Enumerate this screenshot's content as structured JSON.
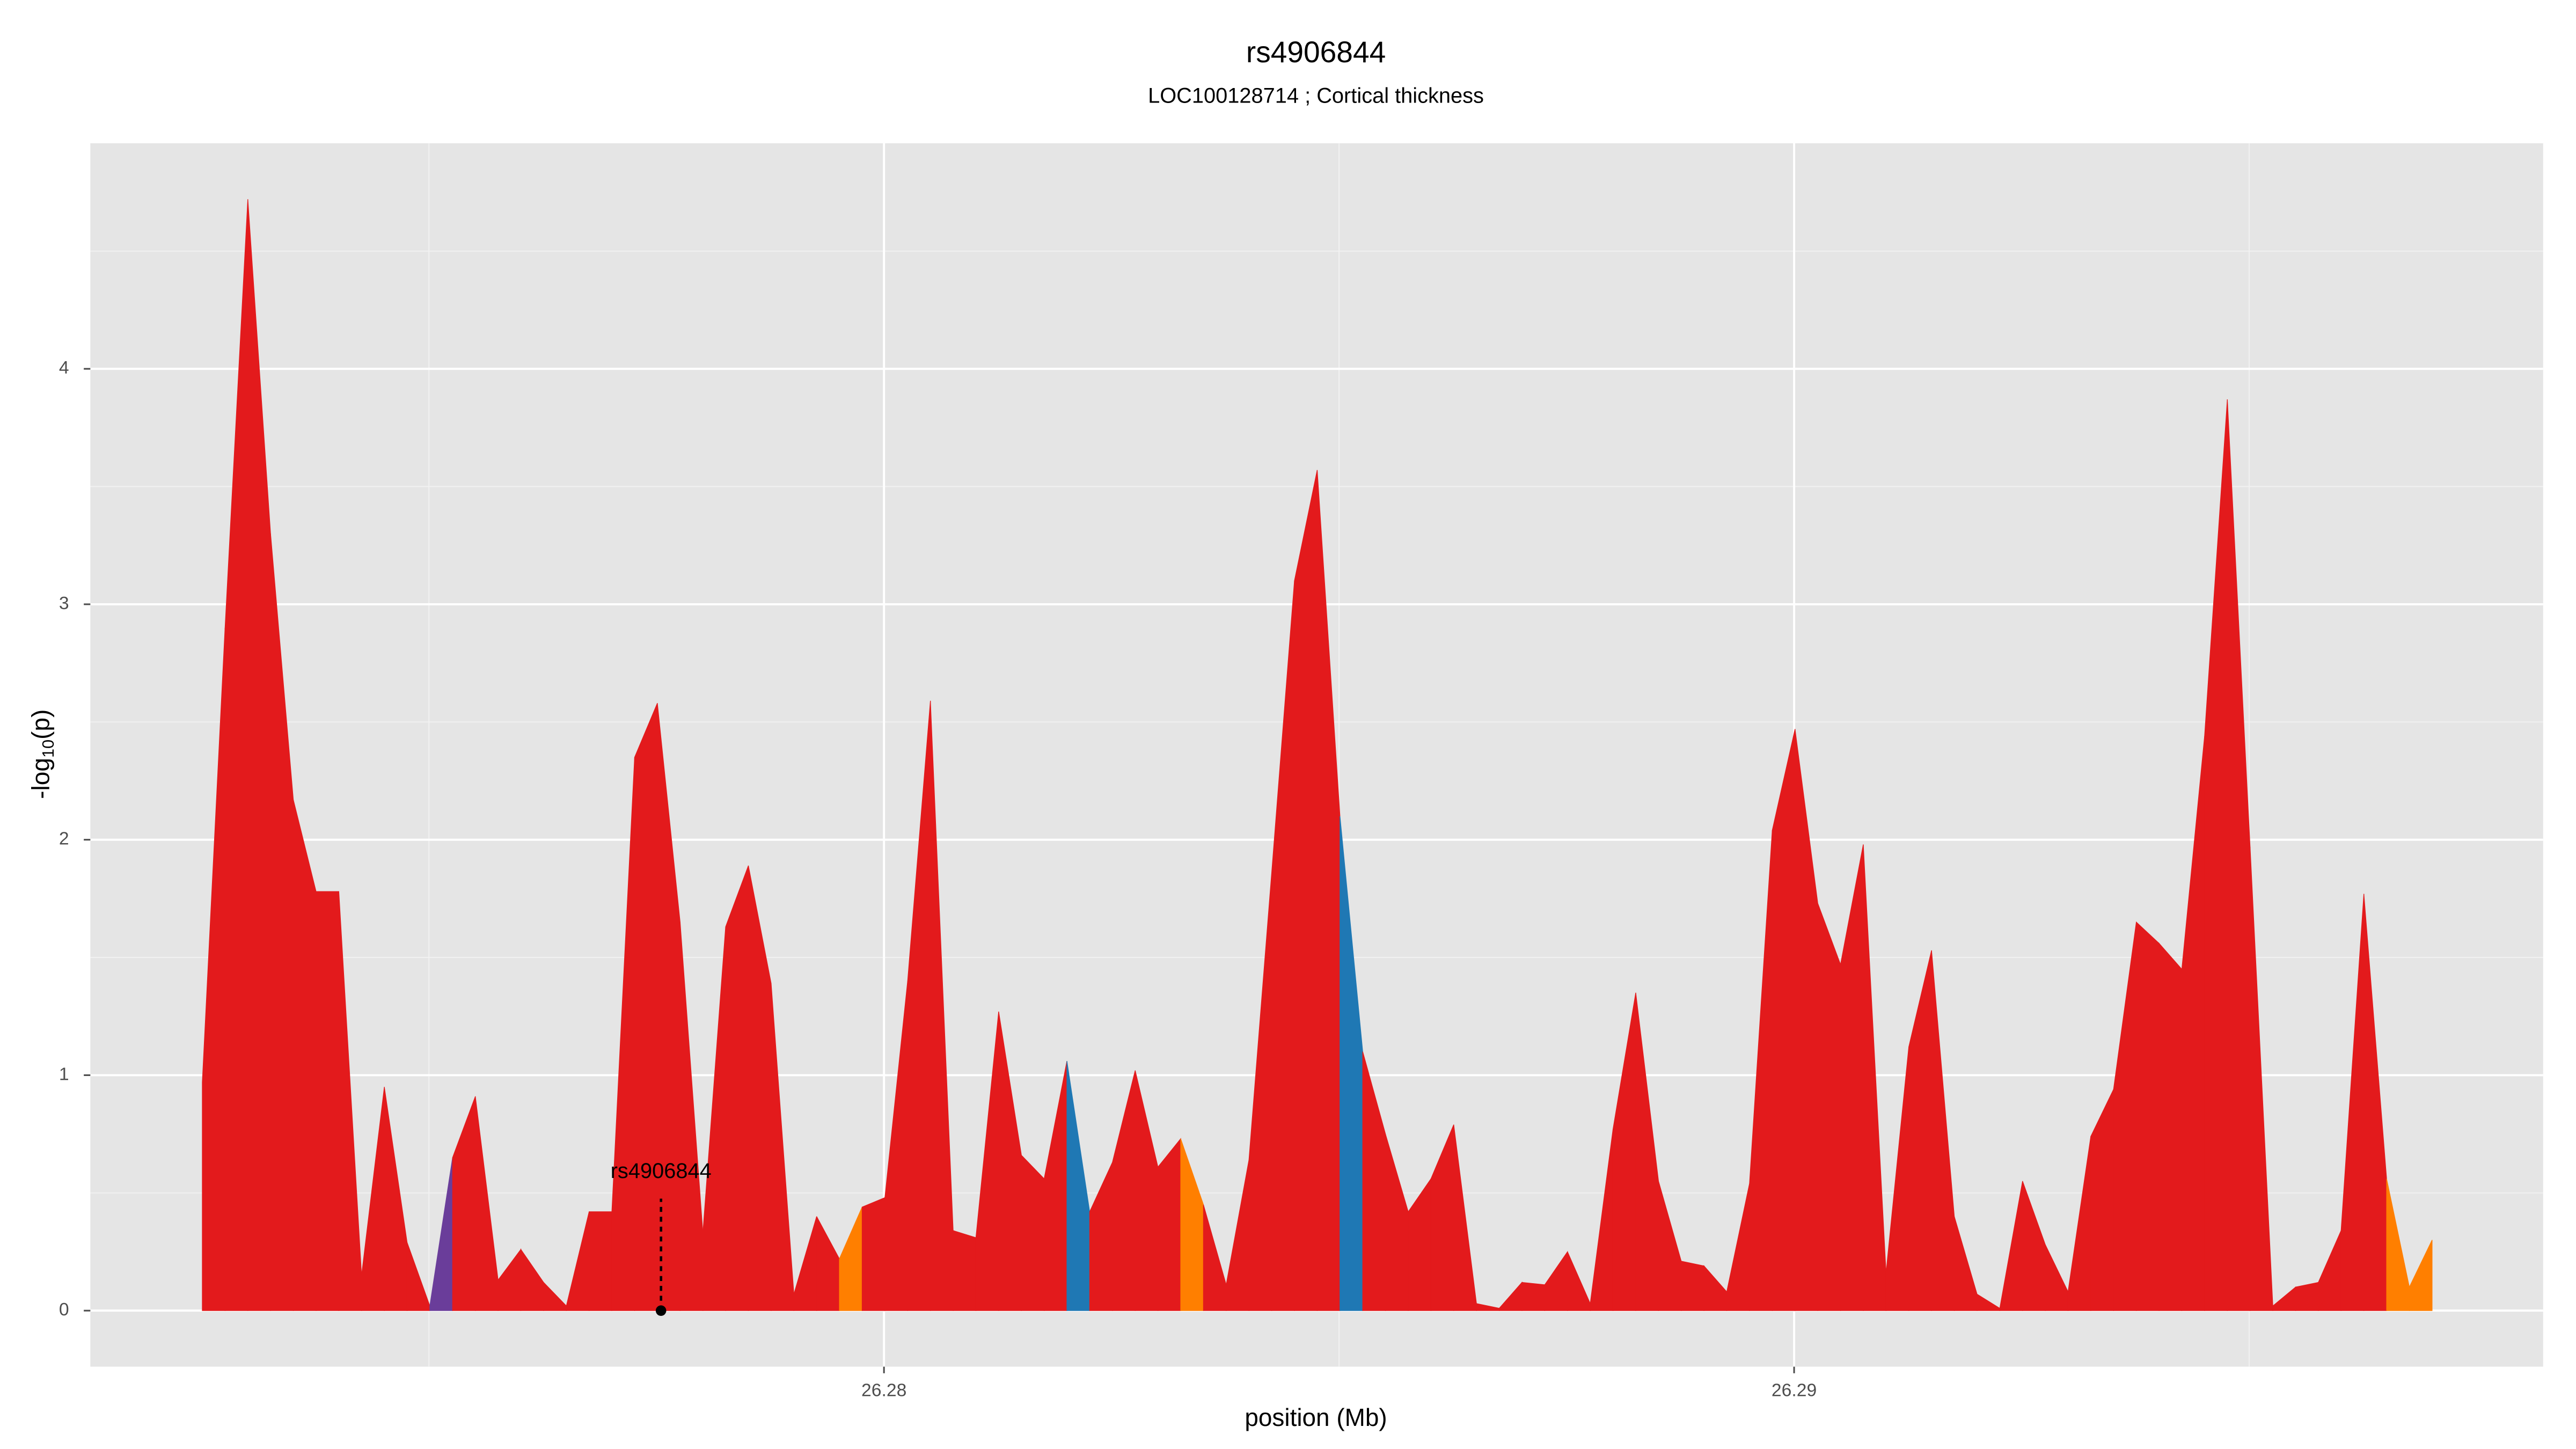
{
  "chart_data": {
    "type": "area",
    "title": "rs4906844",
    "subtitle": "LOC100128714 ; Cortical thickness",
    "x_label": "position (Mb)",
    "y_label": [
      "-log",
      "10",
      "(p)"
    ],
    "x": [
      26.27251,
      26.27276,
      26.27301,
      26.27326,
      26.27351,
      26.27376,
      26.27401,
      26.27426,
      26.27451,
      26.27476,
      26.27501,
      26.27526,
      26.27551,
      26.27576,
      26.27601,
      26.27626,
      26.27651,
      26.27676,
      26.27701,
      26.27726,
      26.27751,
      26.27776,
      26.27801,
      26.27826,
      26.27851,
      26.27876,
      26.27901,
      26.27926,
      26.27951,
      26.27976,
      26.28001,
      26.28026,
      26.28051,
      26.28076,
      26.28101,
      26.28126,
      26.28151,
      26.28176,
      26.28201,
      26.28226,
      26.28251,
      26.28276,
      26.28301,
      26.28326,
      26.28351,
      26.28376,
      26.28401,
      26.28426,
      26.28451,
      26.28476,
      26.28501,
      26.28526,
      26.28551,
      26.28576,
      26.28601,
      26.28626,
      26.28651,
      26.28676,
      26.28701,
      26.28726,
      26.28751,
      26.28776,
      26.28801,
      26.28826,
      26.28851,
      26.28876,
      26.28901,
      26.28926,
      26.28951,
      26.28976,
      26.29001,
      26.29026,
      26.29051,
      26.29076,
      26.29101,
      26.29126,
      26.29151,
      26.29176,
      26.29201,
      26.29226,
      26.29251,
      26.29276,
      26.29301,
      26.29326,
      26.29351,
      26.29376,
      26.29401,
      26.29426,
      26.29451,
      26.29476,
      26.29501,
      26.29526,
      26.29551,
      26.29576,
      26.29601,
      26.29626,
      26.29651,
      26.29676,
      26.29701
    ],
    "values": [
      0.97,
      2.9,
      4.72,
      3.3,
      2.17,
      1.78,
      1.78,
      0.15,
      0.95,
      0.29,
      0.02,
      0.65,
      0.91,
      0.13,
      0.26,
      0.12,
      0.02,
      0.42,
      0.42,
      2.35,
      2.58,
      1.65,
      0.33,
      1.63,
      1.89,
      1.39,
      0.07,
      0.4,
      0.22,
      0.44,
      0.48,
      1.4,
      2.59,
      0.34,
      0.31,
      1.27,
      0.66,
      0.56,
      1.06,
      0.42,
      0.63,
      1.02,
      0.61,
      0.73,
      0.45,
      0.11,
      0.64,
      1.86,
      3.1,
      3.57,
      2.1,
      1.1,
      0.75,
      0.42,
      0.56,
      0.79,
      0.03,
      0.01,
      0.12,
      0.11,
      0.25,
      0.03,
      0.77,
      1.35,
      0.55,
      0.21,
      0.19,
      0.08,
      0.54,
      2.04,
      2.47,
      1.73,
      1.47,
      1.98,
      0.16,
      1.12,
      1.53,
      0.4,
      0.07,
      0.01,
      0.55,
      0.28,
      0.08,
      0.74,
      0.94,
      1.65,
      1.56,
      1.45,
      2.44,
      3.87,
      1.97,
      0.02,
      0.1,
      0.12,
      0.34,
      1.77,
      0.56,
      0.1,
      0.3
    ],
    "segment_colors": [
      "#e31a1c",
      "#e31a1c",
      "#e31a1c",
      "#e31a1c",
      "#e31a1c",
      "#e31a1c",
      "#e31a1c",
      "#e31a1c",
      "#e31a1c",
      "#e31a1c",
      "#6a3d9a",
      "#e31a1c",
      "#e31a1c",
      "#e31a1c",
      "#e31a1c",
      "#e31a1c",
      "#e31a1c",
      "#e31a1c",
      "#e31a1c",
      "#e31a1c",
      "#e31a1c",
      "#e31a1c",
      "#e31a1c",
      "#e31a1c",
      "#e31a1c",
      "#e31a1c",
      "#e31a1c",
      "#e31a1c",
      "#ff7f00",
      "#e31a1c",
      "#e31a1c",
      "#e31a1c",
      "#e31a1c",
      "#e31a1c",
      "#e31a1c",
      "#e31a1c",
      "#e31a1c",
      "#e31a1c",
      "#1f78b4",
      "#e31a1c",
      "#e31a1c",
      "#e31a1c",
      "#e31a1c",
      "#ff7f00",
      "#e31a1c",
      "#e31a1c",
      "#e31a1c",
      "#e31a1c",
      "#e31a1c",
      "#e31a1c",
      "#1f78b4",
      "#e31a1c",
      "#e31a1c",
      "#e31a1c",
      "#e31a1c",
      "#e31a1c",
      "#e31a1c",
      "#e31a1c",
      "#e31a1c",
      "#e31a1c",
      "#e31a1c",
      "#e31a1c",
      "#e31a1c",
      "#e31a1c",
      "#e31a1c",
      "#e31a1c",
      "#e31a1c",
      "#e31a1c",
      "#e31a1c",
      "#e31a1c",
      "#e31a1c",
      "#e31a1c",
      "#e31a1c",
      "#e31a1c",
      "#e31a1c",
      "#e31a1c",
      "#e31a1c",
      "#e31a1c",
      "#e31a1c",
      "#e31a1c",
      "#e31a1c",
      "#e31a1c",
      "#e31a1c",
      "#e31a1c",
      "#e31a1c",
      "#e31a1c",
      "#e31a1c",
      "#e31a1c",
      "#e31a1c",
      "#e31a1c",
      "#e31a1c",
      "#e31a1c",
      "#e31a1c",
      "#e31a1c",
      "#e31a1c",
      "#e31a1c",
      "#ff7f00",
      "#ff7f00"
    ],
    "xlim": [
      26.27128,
      26.29823
    ],
    "ylim": [
      -0.238,
      4.958
    ],
    "xticks": [
      26.28,
      26.29
    ],
    "yticks": [
      0,
      1,
      2,
      3,
      4
    ],
    "grid": true,
    "annotation": {
      "label": "rs4906844",
      "x": 26.27755
    }
  }
}
